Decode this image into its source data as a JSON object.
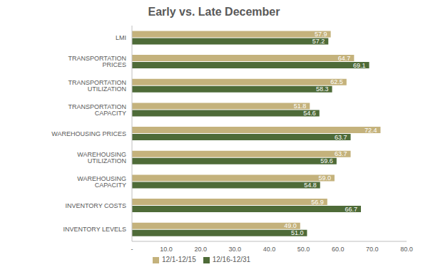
{
  "chart_data": {
    "type": "bar",
    "title": "Early vs. Late December",
    "orientation": "horizontal",
    "categories": [
      "LMI",
      "TRANSPORTATION PRICES",
      "TRANSPORTATION UTILIZATION",
      "TRANSPORTATION CAPACITY",
      "WAREHOUSING PRICES",
      "WAREHOUSING UTILIZATION",
      "WAREHOUSING CAPACITY",
      "INVENTORY COSTS",
      "INVENTORY LEVELS"
    ],
    "series": [
      {
        "name": "12/1-12/15",
        "color": "#c4b27c",
        "values": [
          57.9,
          64.7,
          62.5,
          51.8,
          72.4,
          63.7,
          59.0,
          56.9,
          49.0
        ],
        "value_labels": [
          "57.9",
          "64.7",
          "62.5",
          "51.8",
          "72.4",
          "63.7",
          "59.0",
          "56.9",
          "49.0"
        ]
      },
      {
        "name": "12/16-12/31",
        "color": "#4e6b38",
        "values": [
          57.2,
          69.1,
          58.3,
          54.6,
          63.7,
          59.6,
          54.8,
          66.7,
          51.0
        ],
        "value_labels": [
          "57.2",
          "69.1",
          "58.3",
          "54.6",
          "63.7",
          "59.6",
          "54.8",
          "66.7",
          "51.0"
        ]
      }
    ],
    "xlim": [
      0,
      80
    ],
    "xticks": [
      {
        "value": 0,
        "label": "-"
      },
      {
        "value": 10,
        "label": "10.0"
      },
      {
        "value": 20,
        "label": "20.0"
      },
      {
        "value": 30,
        "label": "30.0"
      },
      {
        "value": 40,
        "label": "40.0"
      },
      {
        "value": 50,
        "label": "50.0"
      },
      {
        "value": 60,
        "label": "60.0"
      },
      {
        "value": 70,
        "label": "70.0"
      },
      {
        "value": 80,
        "label": "80.0"
      }
    ],
    "grid": false,
    "data_labels": true,
    "legend": "bottom"
  }
}
